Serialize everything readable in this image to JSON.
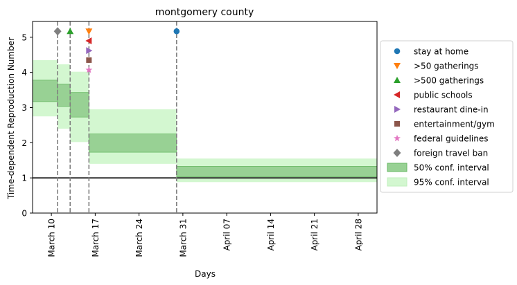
{
  "chart_data": {
    "type": "step-area",
    "title": "montgomery county",
    "xlabel": "Days",
    "ylabel": "Time-dependent Reproduction Number",
    "ylim": [
      0,
      5.45
    ],
    "xlim": [
      "2020-03-07",
      "2020-05-01"
    ],
    "yticks": [
      0,
      1,
      2,
      3,
      4,
      5
    ],
    "xticks": [
      {
        "date": "2020-03-10",
        "label": "March 10"
      },
      {
        "date": "2020-03-17",
        "label": "March 17"
      },
      {
        "date": "2020-03-24",
        "label": "March 24"
      },
      {
        "date": "2020-03-31",
        "label": "March 31"
      },
      {
        "date": "2020-04-07",
        "label": "April 07"
      },
      {
        "date": "2020-04-14",
        "label": "April 14"
      },
      {
        "date": "2020-04-21",
        "label": "April 21"
      },
      {
        "date": "2020-04-28",
        "label": "April 28"
      }
    ],
    "reference_line": 1,
    "segments": [
      {
        "start": "2020-03-07",
        "end": "2020-03-11",
        "ci50": [
          3.17,
          3.78
        ],
        "ci95": [
          2.75,
          4.35
        ]
      },
      {
        "start": "2020-03-11",
        "end": "2020-03-13",
        "ci50": [
          3.03,
          3.67
        ],
        "ci95": [
          2.4,
          4.23
        ]
      },
      {
        "start": "2020-03-13",
        "end": "2020-03-16",
        "ci50": [
          2.73,
          3.43
        ],
        "ci95": [
          2.02,
          4.02
        ]
      },
      {
        "start": "2020-03-16",
        "end": "2020-03-30",
        "ci50": [
          1.73,
          2.25
        ],
        "ci95": [
          1.4,
          2.95
        ]
      },
      {
        "start": "2020-03-30",
        "end": "2020-05-01",
        "ci50": [
          1.03,
          1.33
        ],
        "ci95": [
          0.88,
          1.55
        ]
      }
    ],
    "interventions": [
      {
        "name": "stay at home",
        "date": "2020-03-30",
        "y": 5.17,
        "marker": "circle",
        "color": "#1f77b4"
      },
      {
        "name": ">50 gatherings",
        "date": "2020-03-16",
        "y": 5.17,
        "marker": "triangle-down",
        "color": "#ff7f0e"
      },
      {
        "name": ">500 gatherings",
        "date": "2020-03-13",
        "y": 5.17,
        "marker": "triangle-up",
        "color": "#2ca02c"
      },
      {
        "name": "public schools",
        "date": "2020-03-16",
        "y": 4.9,
        "marker": "triangle-left",
        "color": "#d62728"
      },
      {
        "name": "restaurant dine-in",
        "date": "2020-03-16",
        "y": 4.62,
        "marker": "triangle-right",
        "color": "#9467bd"
      },
      {
        "name": "entertainment/gym",
        "date": "2020-03-16",
        "y": 4.35,
        "marker": "square",
        "color": "#8c564b"
      },
      {
        "name": "federal guidelines",
        "date": "2020-03-16",
        "y": 4.07,
        "marker": "star",
        "color": "#e377c2"
      },
      {
        "name": "foreign travel ban",
        "date": "2020-03-11",
        "y": 5.17,
        "marker": "diamond",
        "color": "#7f7f7f"
      }
    ],
    "vlines": [
      "2020-03-11",
      "2020-03-13",
      "2020-03-16",
      "2020-03-30"
    ],
    "legend": {
      "placement": "right",
      "entries": [
        {
          "label": "stay at home",
          "kind": "marker",
          "ref": 0
        },
        {
          "label": ">50 gatherings",
          "kind": "marker",
          "ref": 1
        },
        {
          "label": ">500 gatherings",
          "kind": "marker",
          "ref": 2
        },
        {
          "label": "public schools",
          "kind": "marker",
          "ref": 3
        },
        {
          "label": "restaurant dine-in",
          "kind": "marker",
          "ref": 4
        },
        {
          "label": "entertainment/gym",
          "kind": "marker",
          "ref": 5
        },
        {
          "label": "federal guidelines",
          "kind": "marker",
          "ref": 6
        },
        {
          "label": "foreign travel ban",
          "kind": "marker",
          "ref": 7
        },
        {
          "label": "50% conf. interval",
          "kind": "patch",
          "fill": "#98d194",
          "stroke": "#6ab966"
        },
        {
          "label": "95% conf. interval",
          "kind": "patch",
          "fill": "#d3f7d0",
          "stroke": "#c2efbe"
        }
      ]
    },
    "colors": {
      "ci50_fill": "#98d194",
      "ci50_edge": "#6ab966",
      "ci95_fill": "#d3f7d0",
      "vline": "#7f7f7f",
      "reference_line": "#000000"
    }
  }
}
